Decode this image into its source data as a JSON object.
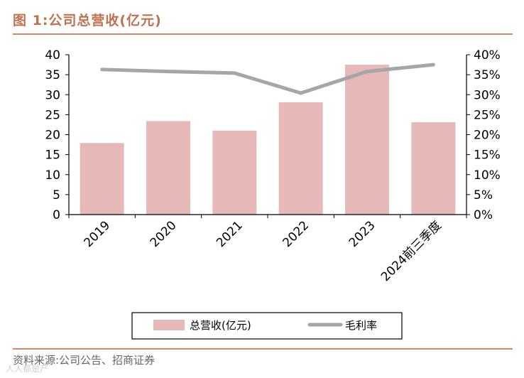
{
  "figure": {
    "title": "图 1:公司总营收(亿元)",
    "source": "资料来源:公司公告、招商证券",
    "watermark": "人人都是产"
  },
  "colors": {
    "accent": "#c0714f",
    "bar": "#e6b8b7",
    "line": "#a6a6a6"
  },
  "chart_data": {
    "type": "bar",
    "categories": [
      "2019",
      "2020",
      "2021",
      "2022",
      "2023",
      "2024前三季度"
    ],
    "series": [
      {
        "name": "总营收(亿元)",
        "type": "bar",
        "axis": "left",
        "values": [
          17.9,
          23.4,
          21.0,
          28.1,
          37.5,
          23.1
        ]
      },
      {
        "name": "毛利率",
        "type": "line",
        "axis": "right",
        "values": [
          36.3,
          35.8,
          35.4,
          30.4,
          35.8,
          37.5
        ]
      }
    ],
    "y_left": {
      "ylim": [
        0,
        40
      ],
      "ticks": [
        "0",
        "5",
        "10",
        "15",
        "20",
        "25",
        "30",
        "35",
        "40"
      ]
    },
    "y_right": {
      "ylim": [
        0,
        40
      ],
      "ticks": [
        "0%",
        "5%",
        "10%",
        "15%",
        "20%",
        "25%",
        "30%",
        "35%",
        "40%"
      ]
    },
    "grid": false,
    "legend_position": "bottom"
  }
}
